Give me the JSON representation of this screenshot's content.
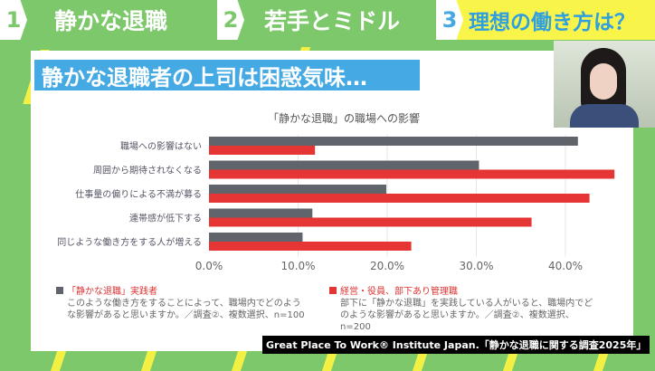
{
  "tabs": [
    {
      "num": "1",
      "label": "静かな退職"
    },
    {
      "num": "2",
      "label": "若手とミドル"
    },
    {
      "num": "3",
      "label": "理想の働き方は？"
    }
  ],
  "banner": "静かな退職者の上司は困惑気味…",
  "colors": {
    "practitioner": "#5f656b",
    "manager": "#e53535",
    "accent_blue": "#45a9e3",
    "bg_green": "#7cc86a",
    "active_tab": "#f8f44a"
  },
  "chart_data": {
    "type": "bar",
    "orientation": "horizontal",
    "title": "「静かな退職」の職場への影響",
    "categories": [
      "職場への影響はない",
      "周囲から期待されなくなる",
      "仕事量の偏りによる不満が募る",
      "連帯感が低下する",
      "同じような働き方をする人が増える"
    ],
    "series": [
      {
        "name": "「静かな退職」実践者",
        "values": [
          41.4,
          30.3,
          19.9,
          11.6,
          10.5
        ]
      },
      {
        "name": "経営・役員、部下あり管理職",
        "values": [
          11.9,
          45.5,
          42.7,
          36.2,
          22.7
        ]
      }
    ],
    "xlim": [
      0,
      45
    ],
    "ticks": [
      "0.0%",
      "10.0%",
      "20.0%",
      "30.0%",
      "40.0%"
    ],
    "grid": true,
    "legend": "bottom"
  },
  "legend": [
    {
      "title": "「静かな退職」実践者",
      "note": "このような働き方をすることによって、職場内でどのような影響があると思いますか。／調査②、複数選択、n=100"
    },
    {
      "title": "経営・役員、部下あり管理職",
      "note": "部下に「静かな退職」を実践している人がいると、職場内でどのような影響があると思いますか。／調査②、複数選択、n=200"
    }
  ],
  "source": "Great Place To Work® Institute Japan.「静かな退職に関する調査2025年」"
}
